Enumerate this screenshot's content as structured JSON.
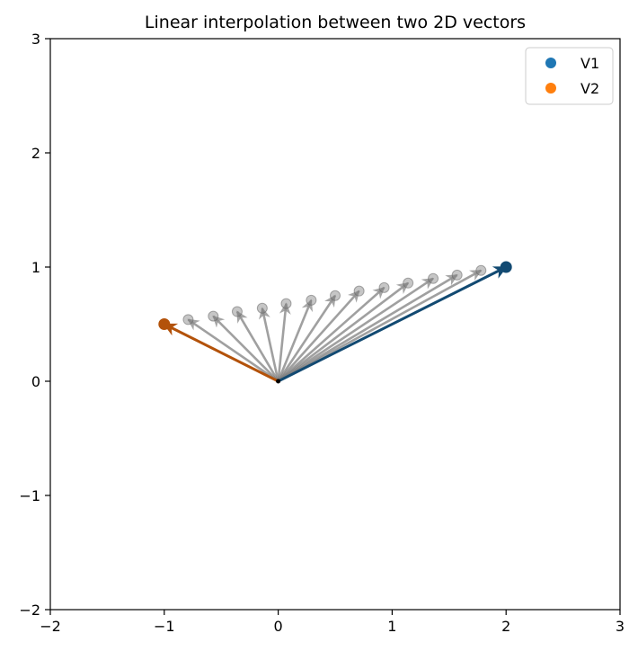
{
  "chart_data": {
    "type": "line",
    "title": "Linear interpolation between two 2D vectors",
    "xlabel": "",
    "ylabel": "",
    "xlim": [
      -2,
      3
    ],
    "ylim": [
      -2,
      3
    ],
    "x_ticks": [
      "−2",
      "−1",
      "0",
      "1",
      "2",
      "3"
    ],
    "y_ticks": [
      "−2",
      "−1",
      "0",
      "1",
      "2",
      "3"
    ],
    "grid": false,
    "legend_position": "top-right",
    "origin": [
      0,
      0
    ],
    "series": [
      {
        "name": "V1",
        "color": "#1f77b4",
        "arrow_color": "#124a72",
        "x": 2.0,
        "y": 1.0
      },
      {
        "name": "V2",
        "color": "#ff7f0e",
        "arrow_color": "#b3520a",
        "x": -1.0,
        "y": 0.5
      }
    ],
    "interpolated": {
      "color": "#808080",
      "points": [
        [
          1.78,
          0.97
        ],
        [
          1.57,
          0.93
        ],
        [
          1.36,
          0.9
        ],
        [
          1.14,
          0.86
        ],
        [
          0.93,
          0.82
        ],
        [
          0.71,
          0.79
        ],
        [
          0.5,
          0.75
        ],
        [
          0.29,
          0.71
        ],
        [
          0.07,
          0.68
        ],
        [
          -0.14,
          0.64
        ],
        [
          -0.36,
          0.61
        ],
        [
          -0.57,
          0.57
        ],
        [
          -0.79,
          0.54
        ]
      ]
    }
  }
}
